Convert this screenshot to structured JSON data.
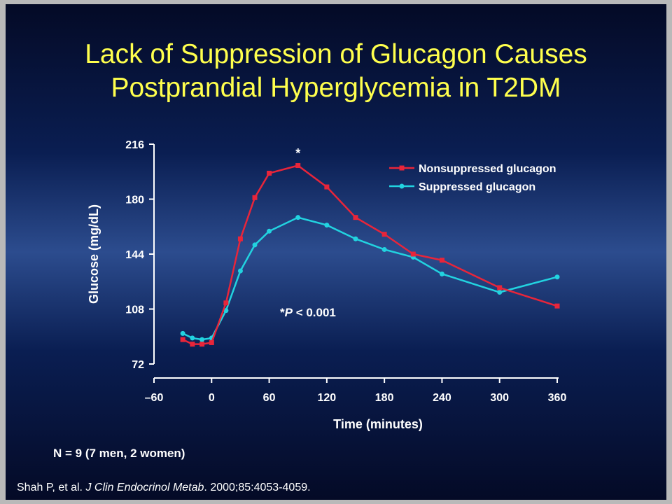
{
  "slide": {
    "title_line1": "Lack of Suppression of Glucagon Causes",
    "title_line2": "Postprandial Hyperglycemia in T2DM",
    "footnote": "N = 9 (7 men, 2 women)",
    "citation": {
      "authors": "Shah P, et al.",
      "journal": "J Clin Endocrinol Metab",
      "details": "2000;85:4053-4059."
    }
  },
  "colors": {
    "nonsuppressed": "#e8253a",
    "suppressed": "#22d3e0",
    "title": "#ffff4d",
    "text": "#ffffff"
  },
  "chart_data": {
    "type": "line",
    "xlabel": "Time (minutes)",
    "ylabel": "Glucose (mg/dL)",
    "xlim": [
      -60,
      360
    ],
    "ylim": [
      72,
      216
    ],
    "xticks": [
      -60,
      0,
      60,
      120,
      180,
      240,
      300,
      360
    ],
    "xtick_labels": [
      "–60",
      "0",
      "60",
      "120",
      "180",
      "240",
      "300",
      "360"
    ],
    "yticks": [
      72,
      108,
      144,
      180,
      216
    ],
    "legend_position": "top-right",
    "grid": false,
    "annotations": [
      {
        "text": "*",
        "x": 90,
        "y": 206
      },
      {
        "text_prefix": "*",
        "text_italic": "P",
        "text_suffix": " < 0.001",
        "x": 70,
        "y": 106
      }
    ],
    "series": [
      {
        "name": "Nonsuppressed glucagon",
        "color": "#e8253a",
        "marker": "square",
        "x": [
          -30,
          -20,
          -10,
          0,
          15,
          30,
          45,
          60,
          90,
          120,
          150,
          180,
          210,
          240,
          300,
          360
        ],
        "y": [
          88,
          85,
          85,
          86,
          112,
          154,
          181,
          197,
          202,
          188,
          168,
          157,
          144,
          140,
          122,
          110
        ]
      },
      {
        "name": "Suppressed glucagon",
        "color": "#22d3e0",
        "marker": "circle",
        "x": [
          -30,
          -20,
          -10,
          0,
          15,
          30,
          45,
          60,
          90,
          120,
          150,
          180,
          210,
          240,
          300,
          360
        ],
        "y": [
          92,
          89,
          88,
          89,
          107,
          133,
          150,
          159,
          168,
          163,
          154,
          147,
          142,
          131,
          119,
          129
        ]
      }
    ]
  }
}
